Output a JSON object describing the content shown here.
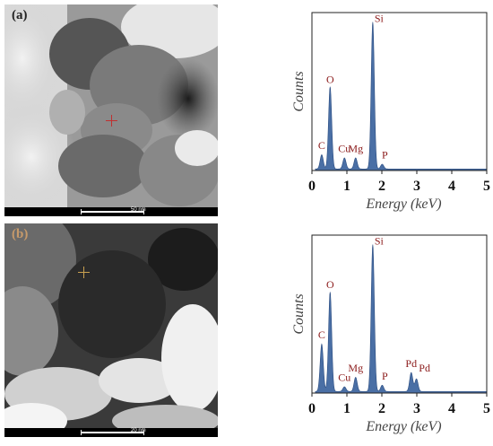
{
  "panels": [
    {
      "label": "(a)",
      "scale_bar": "50 nm"
    },
    {
      "label": "(b)",
      "scale_bar": "20 nm"
    }
  ],
  "chart_data": [
    {
      "type": "line",
      "panel": "(a)",
      "xlabel": "Energy (keV)",
      "ylabel": "Counts",
      "xlim": [
        0,
        5
      ],
      "xticks": [
        "0",
        "1",
        "2",
        "3",
        "4",
        "5"
      ],
      "ylim": [
        0,
        1.0
      ],
      "fill_color": "#4a6fa5",
      "label_color": "#8b1a1a",
      "series": [
        {
          "peaks": [
            {
              "element": "C",
              "x": 0.28,
              "y": 0.09
            },
            {
              "element": "O",
              "x": 0.52,
              "y": 0.52
            },
            {
              "element": "Cu",
              "x": 0.93,
              "y": 0.07
            },
            {
              "element": "Mg",
              "x": 1.25,
              "y": 0.07
            },
            {
              "element": "Si",
              "x": 1.74,
              "y": 0.93
            },
            {
              "element": "P",
              "x": 2.01,
              "y": 0.03
            }
          ]
        }
      ]
    },
    {
      "type": "line",
      "panel": "(b)",
      "xlabel": "Energy (keV)",
      "ylabel": "Counts",
      "xlim": [
        0,
        5
      ],
      "xticks": [
        "0",
        "1",
        "2",
        "3",
        "4",
        "5"
      ],
      "ylim": [
        0,
        1.0
      ],
      "fill_color": "#4a6fa5",
      "label_color": "#8b1a1a",
      "series": [
        {
          "peaks": [
            {
              "element": "C",
              "x": 0.28,
              "y": 0.3
            },
            {
              "element": "O",
              "x": 0.52,
              "y": 0.63
            },
            {
              "element": "Cu",
              "x": 0.93,
              "y": 0.03
            },
            {
              "element": "Mg",
              "x": 1.25,
              "y": 0.09
            },
            {
              "element": "Si",
              "x": 1.74,
              "y": 0.93
            },
            {
              "element": "P",
              "x": 2.01,
              "y": 0.04
            },
            {
              "element": "Pd",
              "x": 2.84,
              "y": 0.12
            },
            {
              "element": "Pd",
              "x": 2.99,
              "y": 0.08
            }
          ]
        }
      ]
    }
  ]
}
